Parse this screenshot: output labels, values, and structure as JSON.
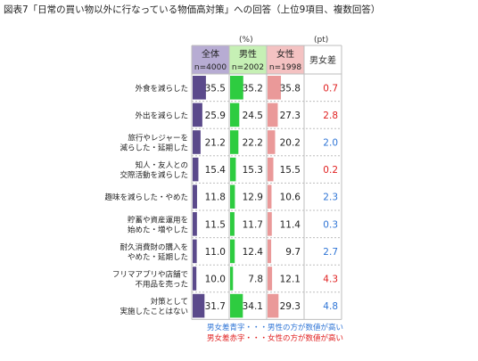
{
  "title": "図表7「日常の買い物以外に行なっている物価高対策」への回答（上位9項目、複数回答）",
  "units": {
    "pct": "(%)",
    "pt": "(pt)"
  },
  "columns": {
    "all": {
      "label": "全体",
      "n": "n=4000"
    },
    "male": {
      "label": "男性",
      "n": "n=2002"
    },
    "female": {
      "label": "女性",
      "n": "n=1998"
    },
    "diff": {
      "label": "男女差"
    }
  },
  "legend": {
    "blue": "男女差青字・・・男性の方が数値が高い",
    "red": "男女差赤字・・・女性の方が数値が高い"
  },
  "colors": {
    "all": "#5b4a8b",
    "male": "#2ecc40",
    "female": "#ea9999",
    "header_all": "#b7acd3",
    "header_male": "#c6f0b5",
    "header_female": "#f4c2c2",
    "blue": "#2f75d6",
    "red": "#e02020"
  },
  "chart_data": {
    "type": "table",
    "title": "図表7「日常の買い物以外に行なっている物価高対策」への回答（上位9項目、複数回答）",
    "series": [
      {
        "name": "全体 n=4000",
        "values": [
          35.5,
          25.9,
          21.2,
          15.4,
          11.8,
          11.5,
          11.0,
          10.0,
          31.7
        ]
      },
      {
        "name": "男性 n=2002",
        "values": [
          35.2,
          24.5,
          22.2,
          15.3,
          12.9,
          11.7,
          12.4,
          7.8,
          34.1
        ]
      },
      {
        "name": "女性 n=1998",
        "values": [
          35.8,
          27.3,
          20.2,
          15.5,
          10.6,
          11.4,
          9.7,
          12.1,
          29.3
        ]
      },
      {
        "name": "男女差",
        "values": [
          0.7,
          2.8,
          2.0,
          0.2,
          2.3,
          0.3,
          2.7,
          4.3,
          4.8
        ],
        "colors": [
          "red",
          "red",
          "blue",
          "red",
          "blue",
          "blue",
          "blue",
          "red",
          "blue"
        ]
      }
    ],
    "categories": [
      [
        "外食を減らした"
      ],
      [
        "外出を減らした"
      ],
      [
        "旅行やレジャーを",
        "減らした・延期した"
      ],
      [
        "知人・友人との",
        "交際活動を減らした"
      ],
      [
        "趣味を減らした・やめた"
      ],
      [
        "貯蓄や資産運用を",
        "始めた・増やした"
      ],
      [
        "耐久消費財の購入を",
        "やめた・延期した"
      ],
      [
        "フリマアプリや店舗で",
        "不用品を売った"
      ],
      [
        "対策として",
        "実施したことはない"
      ]
    ]
  }
}
